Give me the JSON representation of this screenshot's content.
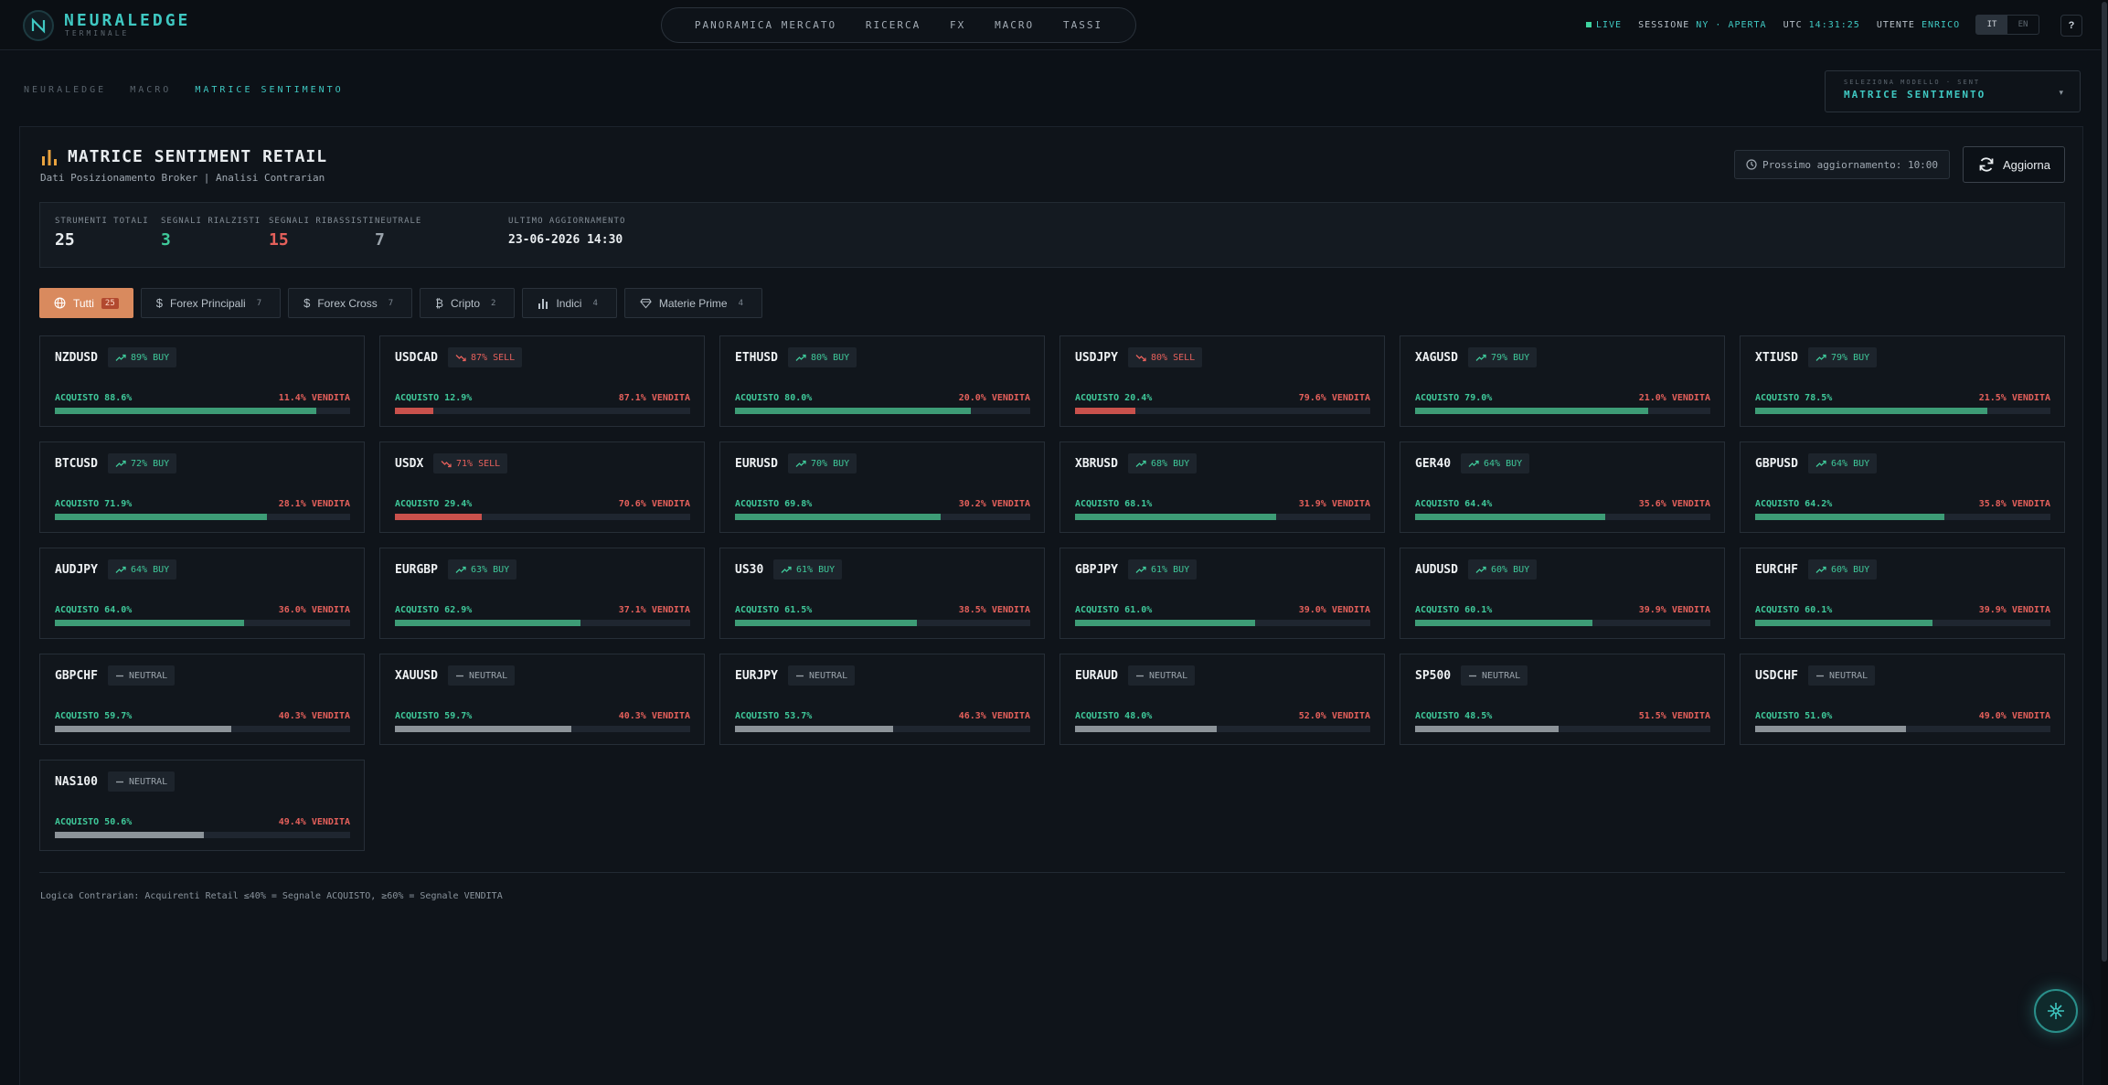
{
  "topbar": {
    "logo_title": "NEURALEDGE",
    "logo_sub": "TERMINALE",
    "nav": [
      "PANORAMICA MERCATO",
      "RICERCA",
      "FX",
      "MACRO",
      "TASSI"
    ],
    "live": "LIVE",
    "session_label": "SESSIONE",
    "session_market": "NY",
    "session_sep": "·",
    "session_state": "APERTA",
    "utc_label": "UTC",
    "utc_time": "14:31:25",
    "user_label": "UTENTE",
    "user_name": "ENRICO",
    "lang_it": "IT",
    "lang_en": "EN",
    "help": "?"
  },
  "breadcrumb": [
    "NEURALEDGE",
    "MACRO",
    "MATRICE SENTIMENTO"
  ],
  "model_select": {
    "label": "SELEZIONA MODELLO · SENT",
    "value": "MATRICE SENTIMENTO"
  },
  "header": {
    "title": "MATRICE SENTIMENT RETAIL",
    "subtitle": "Dati Posizionamento Broker | Analisi Contrarian",
    "next_update": "Prossimo aggiornamento: 10:00",
    "refresh": "Aggiorna"
  },
  "stats": {
    "total_label": "STRUMENTI TOTALI",
    "total": "25",
    "bull_label": "SEGNALI RIALZISTI",
    "bull": "3",
    "bear_label": "SEGNALI RIBASSISTI",
    "bear": "15",
    "neutral_label": "NEUTRALE",
    "neutral": "7",
    "updated_label": "ULTIMO AGGIORNAMENTO",
    "updated": "23-06-2026 14:30"
  },
  "tabs": [
    {
      "label": "Tutti",
      "count": "25",
      "icon": "globe-icon"
    },
    {
      "label": "Forex Principali",
      "count": "7",
      "icon": "dollar-icon"
    },
    {
      "label": "Forex Cross",
      "count": "7",
      "icon": "dollar-icon"
    },
    {
      "label": "Cripto",
      "count": "2",
      "icon": "bitcoin-icon"
    },
    {
      "label": "Indici",
      "count": "4",
      "icon": "bar-chart-icon"
    },
    {
      "label": "Materie Prime",
      "count": "4",
      "icon": "diamond-icon"
    }
  ],
  "colors": {
    "buy": "#3fc99a",
    "sell": "#e5605b",
    "neutral": "#9aa3ab",
    "bar_buy": "#3d9c76",
    "bar_sell": "#c9514c",
    "bar_neutral": "#8c9399",
    "accent": "#3fc8c2",
    "tab_active": "#d98a5e"
  },
  "cards": [
    {
      "symbol": "NZDUSD",
      "signal": "buy",
      "badge": "89% BUY",
      "buy": "ACQUISTO 88.6%",
      "sell": "11.4% VENDITA",
      "fill": 88.6
    },
    {
      "symbol": "USDCAD",
      "signal": "sell",
      "badge": "87% SELL",
      "buy": "ACQUISTO 12.9%",
      "sell": "87.1% VENDITA",
      "fill": 12.9
    },
    {
      "symbol": "ETHUSD",
      "signal": "buy",
      "badge": "80% BUY",
      "buy": "ACQUISTO 80.0%",
      "sell": "20.0% VENDITA",
      "fill": 80.0
    },
    {
      "symbol": "USDJPY",
      "signal": "sell",
      "badge": "80% SELL",
      "buy": "ACQUISTO 20.4%",
      "sell": "79.6% VENDITA",
      "fill": 20.4
    },
    {
      "symbol": "XAGUSD",
      "signal": "buy",
      "badge": "79% BUY",
      "buy": "ACQUISTO 79.0%",
      "sell": "21.0% VENDITA",
      "fill": 79.0
    },
    {
      "symbol": "XTIUSD",
      "signal": "buy",
      "badge": "79% BUY",
      "buy": "ACQUISTO 78.5%",
      "sell": "21.5% VENDITA",
      "fill": 78.5
    },
    {
      "symbol": "BTCUSD",
      "signal": "buy",
      "badge": "72% BUY",
      "buy": "ACQUISTO 71.9%",
      "sell": "28.1% VENDITA",
      "fill": 71.9
    },
    {
      "symbol": "USDX",
      "signal": "sell",
      "badge": "71% SELL",
      "buy": "ACQUISTO 29.4%",
      "sell": "70.6% VENDITA",
      "fill": 29.4
    },
    {
      "symbol": "EURUSD",
      "signal": "buy",
      "badge": "70% BUY",
      "buy": "ACQUISTO 69.8%",
      "sell": "30.2% VENDITA",
      "fill": 69.8
    },
    {
      "symbol": "XBRUSD",
      "signal": "buy",
      "badge": "68% BUY",
      "buy": "ACQUISTO 68.1%",
      "sell": "31.9% VENDITA",
      "fill": 68.1
    },
    {
      "symbol": "GER40",
      "signal": "buy",
      "badge": "64% BUY",
      "buy": "ACQUISTO 64.4%",
      "sell": "35.6% VENDITA",
      "fill": 64.4
    },
    {
      "symbol": "GBPUSD",
      "signal": "buy",
      "badge": "64% BUY",
      "buy": "ACQUISTO 64.2%",
      "sell": "35.8% VENDITA",
      "fill": 64.2
    },
    {
      "symbol": "AUDJPY",
      "signal": "buy",
      "badge": "64% BUY",
      "buy": "ACQUISTO 64.0%",
      "sell": "36.0% VENDITA",
      "fill": 64.0
    },
    {
      "symbol": "EURGBP",
      "signal": "buy",
      "badge": "63% BUY",
      "buy": "ACQUISTO 62.9%",
      "sell": "37.1% VENDITA",
      "fill": 62.9
    },
    {
      "symbol": "US30",
      "signal": "buy",
      "badge": "61% BUY",
      "buy": "ACQUISTO 61.5%",
      "sell": "38.5% VENDITA",
      "fill": 61.5
    },
    {
      "symbol": "GBPJPY",
      "signal": "buy",
      "badge": "61% BUY",
      "buy": "ACQUISTO 61.0%",
      "sell": "39.0% VENDITA",
      "fill": 61.0
    },
    {
      "symbol": "AUDUSD",
      "signal": "buy",
      "badge": "60% BUY",
      "buy": "ACQUISTO 60.1%",
      "sell": "39.9% VENDITA",
      "fill": 60.1
    },
    {
      "symbol": "EURCHF",
      "signal": "buy",
      "badge": "60% BUY",
      "buy": "ACQUISTO 60.1%",
      "sell": "39.9% VENDITA",
      "fill": 60.1
    },
    {
      "symbol": "GBPCHF",
      "signal": "neutral",
      "badge": "NEUTRAL",
      "buy": "ACQUISTO 59.7%",
      "sell": "40.3% VENDITA",
      "fill": 59.7
    },
    {
      "symbol": "XAUUSD",
      "signal": "neutral",
      "badge": "NEUTRAL",
      "buy": "ACQUISTO 59.7%",
      "sell": "40.3% VENDITA",
      "fill": 59.7
    },
    {
      "symbol": "EURJPY",
      "signal": "neutral",
      "badge": "NEUTRAL",
      "buy": "ACQUISTO 53.7%",
      "sell": "46.3% VENDITA",
      "fill": 53.7
    },
    {
      "symbol": "EURAUD",
      "signal": "neutral",
      "badge": "NEUTRAL",
      "buy": "ACQUISTO 48.0%",
      "sell": "52.0% VENDITA",
      "fill": 48.0
    },
    {
      "symbol": "SP500",
      "signal": "neutral",
      "badge": "NEUTRAL",
      "buy": "ACQUISTO 48.5%",
      "sell": "51.5% VENDITA",
      "fill": 48.5
    },
    {
      "symbol": "USDCHF",
      "signal": "neutral",
      "badge": "NEUTRAL",
      "buy": "ACQUISTO 51.0%",
      "sell": "49.0% VENDITA",
      "fill": 51.0
    },
    {
      "symbol": "NAS100",
      "signal": "neutral",
      "badge": "NEUTRAL",
      "buy": "ACQUISTO 50.6%",
      "sell": "49.4% VENDITA",
      "fill": 50.6
    }
  ],
  "footer_note": "Logica Contrarian: Acquirenti Retail ≤40% = Segnale ACQUISTO, ≥60% = Segnale VENDITA"
}
